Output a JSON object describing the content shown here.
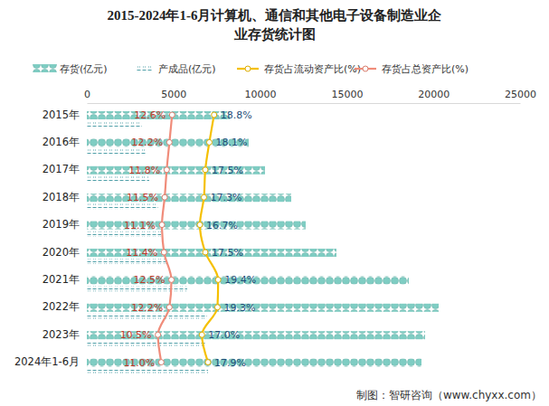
{
  "chart_data": {
    "type": "bar",
    "orientation": "horizontal",
    "title": "2015-2024年1-6月计算机、通信和其他电子设备制造业企业存货统计图",
    "source": "制图：智研咨询（www.chyxx.com）",
    "categories": [
      "2015年",
      "2016年",
      "2017年",
      "2018年",
      "2019年",
      "2020年",
      "2021年",
      "2022年",
      "2023年",
      "2024年1-6月"
    ],
    "ylim": [
      0,
      25000
    ],
    "yticks": [
      0,
      5000,
      10000,
      15000,
      20000,
      25000
    ],
    "y2lim": [
      0,
      64
    ],
    "grid": false,
    "legend": "top",
    "series": [
      {
        "name": "存货(亿元)",
        "type": "bar",
        "color": "#7fcdc3",
        "values": [
          8245,
          9342,
          10282,
          11795,
          12630,
          14405,
          18580,
          20303,
          19520,
          19311
        ]
      },
      {
        "name": "产成品(亿元)",
        "type": "bar",
        "color": "#4f9fa8",
        "values": [
          3184,
          3445,
          3601,
          4123,
          4280,
          4645,
          5793,
          6942,
          6889,
          6994
        ]
      },
      {
        "name": "存货占流动资产比(%)",
        "type": "line",
        "axis": "y2",
        "color": "#f5c000",
        "marker": "circle",
        "data_labels": true,
        "values": [
          18.8,
          18.1,
          17.5,
          17.3,
          16.7,
          17.5,
          19.4,
          19.3,
          17.0,
          17.9
        ],
        "value_labels": [
          "18.8%",
          "18.1%",
          "17.5%",
          "17.3%",
          "16.7%",
          "17.5%",
          "19.4%",
          "19.3%",
          "17.0%",
          "17.9%"
        ]
      },
      {
        "name": "存货占总资产比(%)",
        "type": "line",
        "axis": "y2",
        "color": "#f08c7a",
        "marker": "circle",
        "data_labels": true,
        "values": [
          12.6,
          12.2,
          11.8,
          11.5,
          11.1,
          11.4,
          12.5,
          12.2,
          10.5,
          11.0
        ],
        "value_labels": [
          "12.6%",
          "12.2%",
          "11.8%",
          "11.5%",
          "11.1%",
          "11.4%",
          "12.5%",
          "12.2%",
          "10.5%",
          "11.0%"
        ]
      }
    ]
  }
}
